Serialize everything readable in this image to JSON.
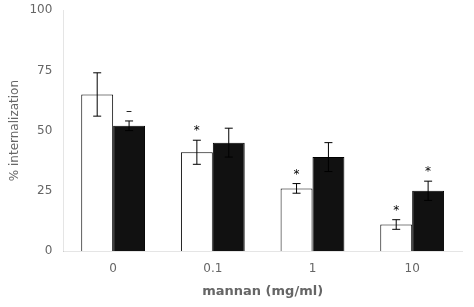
{
  "chart_data": {
    "type": "bar",
    "xlabel": "mannan (mg/ml)",
    "ylabel": "% internalization",
    "categories": [
      "0",
      "0.1",
      "1",
      "10"
    ],
    "series": [
      {
        "color": "#ffffff",
        "values": [
          65,
          41,
          26,
          11
        ],
        "errors": [
          9,
          5,
          2,
          2
        ],
        "annotations": [
          null,
          "*",
          "*",
          "*"
        ]
      },
      {
        "color": "#111111",
        "values": [
          52,
          45,
          39,
          25
        ],
        "errors": [
          2,
          6,
          6,
          4
        ],
        "annotations": [
          "–",
          null,
          null,
          "*"
        ]
      }
    ],
    "ylim": [
      0,
      100
    ],
    "yticks": [
      0,
      25,
      50,
      75,
      100
    ],
    "grid": false
  }
}
